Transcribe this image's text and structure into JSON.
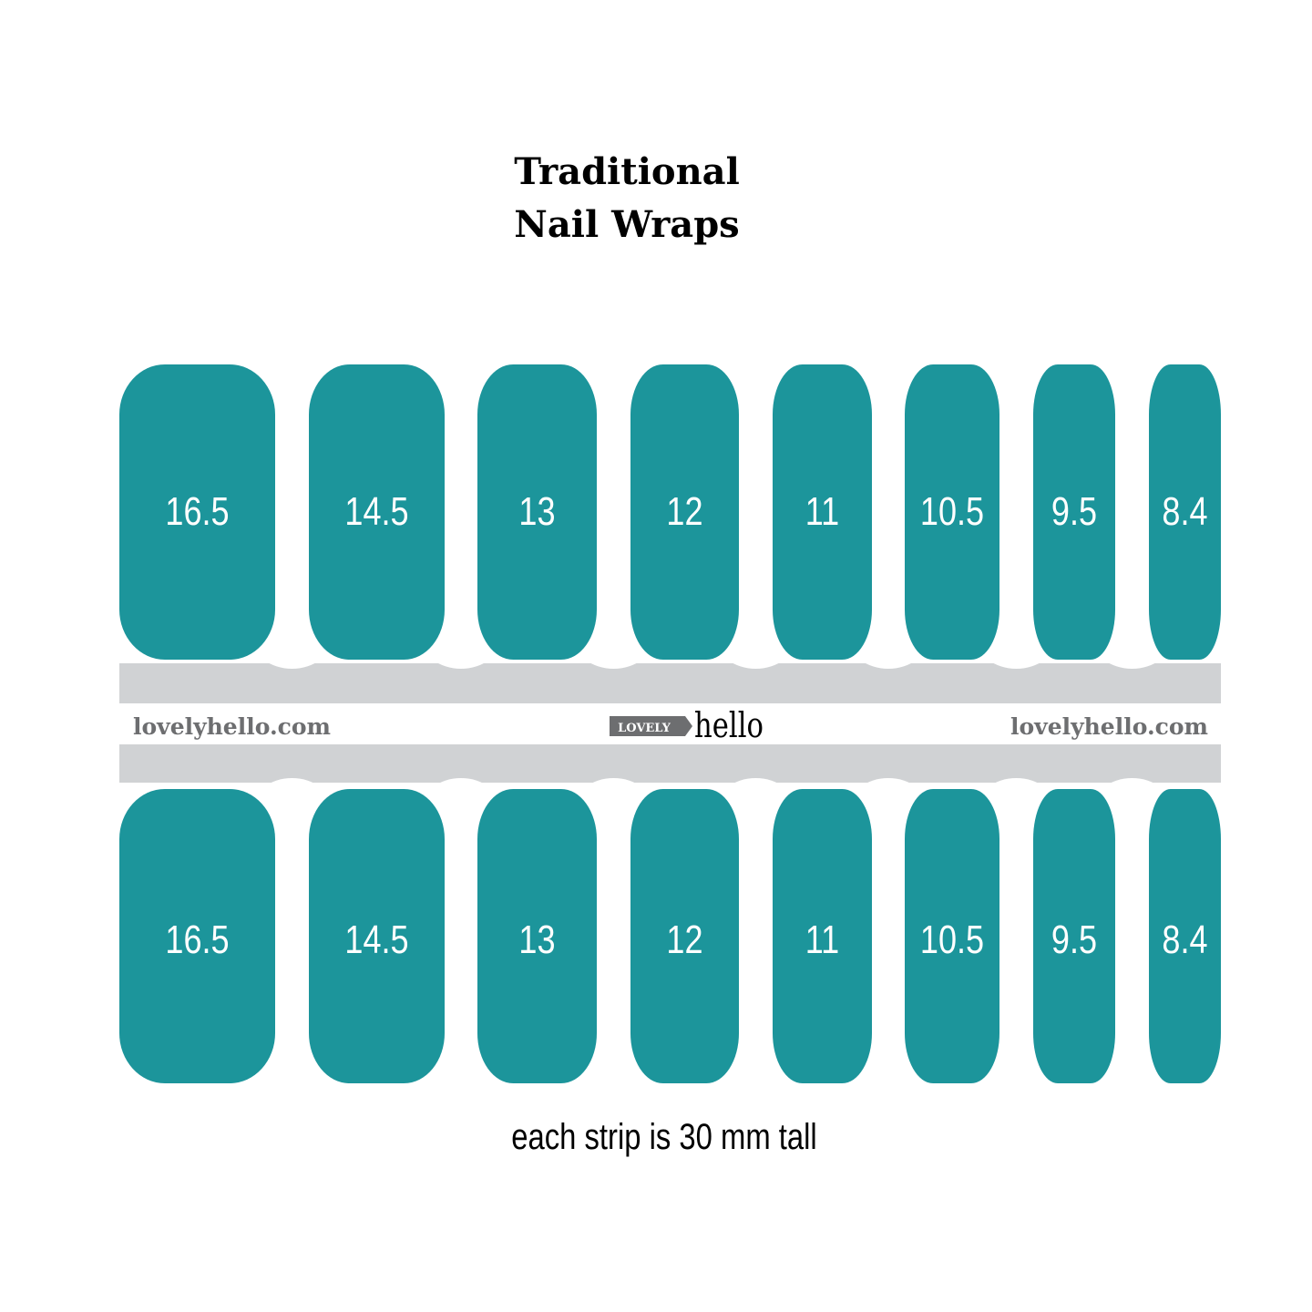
{
  "title": {
    "line1": "Traditional",
    "line2": "Nail Wraps"
  },
  "colors": {
    "nail": "#1c959b",
    "band": "#d0d2d4",
    "site_text": "#6d6e70",
    "logo_box": "#6d6e70"
  },
  "nails": [
    "16.5",
    "14.5",
    "13",
    "12",
    "11",
    "10.5",
    "9.5",
    "8.4"
  ],
  "band": {
    "site_left": "lovelyhello.com",
    "site_right": "lovelyhello.com",
    "logo_box": "LOVELY",
    "logo_word": "hello"
  },
  "caption": "each strip is 30 mm tall"
}
